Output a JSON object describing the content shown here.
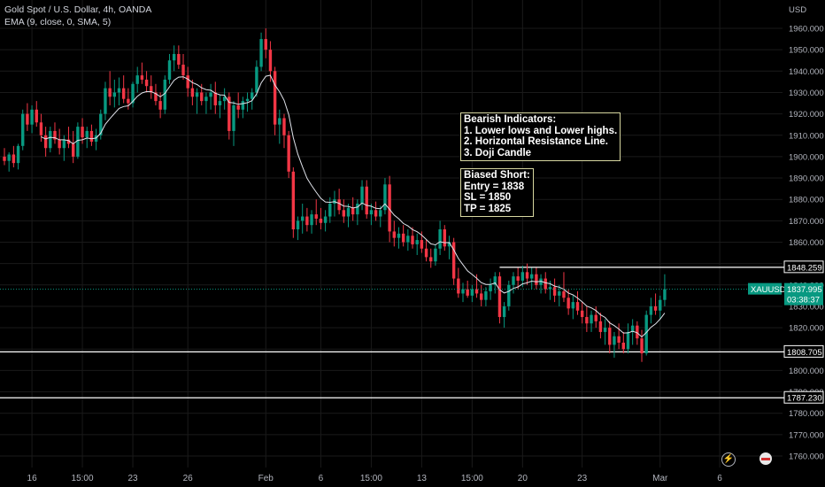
{
  "header": {
    "title": "Gold Spot / U.S. Dollar, 4h, OANDA",
    "indicator": "EMA (9, close, 0, SMA, 5)"
  },
  "colors": {
    "background": "#000000",
    "bull": "#089981",
    "bear": "#f23645",
    "ema": "#e0e3eb",
    "axis_text": "#b2b5be",
    "grid": "#1a1a1a",
    "price_tag": "#089981"
  },
  "annotations": {
    "bearish": {
      "title": "Bearish Indicators:",
      "lines": [
        "1. Lower lows and Lower highs.",
        "2. Horizontal Resistance Line.",
        "3. Doji Candle"
      ]
    },
    "trade": {
      "title": "Biased Short:",
      "lines": [
        "Entry = 1838",
        "SL = 1850",
        "TP = 1825"
      ]
    }
  },
  "chart_data": {
    "type": "candlestick",
    "symbol": "XAUUSD",
    "currency": "USD",
    "ylim": [
      1754,
      1967
    ],
    "y_ticks": [
      1760,
      1770,
      1780,
      1790,
      1800,
      1810,
      1820,
      1830,
      1840,
      1850,
      1860,
      1870,
      1880,
      1890,
      1900,
      1910,
      1920,
      1930,
      1940,
      1950,
      1960
    ],
    "y_tick_labels": [
      "1760.000",
      "1770.000",
      "1780.000",
      "1790.000",
      "1800.000",
      "1810.000",
      "1820.000",
      "1830.000",
      "1840.000",
      "1850.000",
      "1860.000",
      "1870.000",
      "1880.000",
      "1890.000",
      "1900.000",
      "1910.000",
      "1920.000",
      "1930.000",
      "1940.000",
      "1950.000",
      "1960.000"
    ],
    "x_ticks": [
      {
        "label": "16",
        "bar": 6
      },
      {
        "label": "15:00",
        "bar": 17
      },
      {
        "label": "23",
        "bar": 28
      },
      {
        "label": "26",
        "bar": 40
      },
      {
        "label": "Feb",
        "bar": 57
      },
      {
        "label": "6",
        "bar": 69
      },
      {
        "label": "15:00",
        "bar": 80
      },
      {
        "label": "13",
        "bar": 91
      },
      {
        "label": "15:00",
        "bar": 102
      },
      {
        "label": "20",
        "bar": 113
      },
      {
        "label": "23",
        "bar": 126
      },
      {
        "label": "Mar",
        "bar": 143
      },
      {
        "label": "6",
        "bar": 156
      }
    ],
    "bar_count": 165,
    "horizontal_lines": [
      {
        "price": 1848.259,
        "label": "1848.259",
        "start_bar": 108
      },
      {
        "price": 1808.705,
        "label": "1808.705",
        "start_bar": 0
      },
      {
        "price": 1787.23,
        "label": "1787.230",
        "start_bar": 0
      }
    ],
    "last_price": {
      "value": 1837.995,
      "label": "1837.995",
      "countdown": "03:38:37",
      "symbol_label": "XAUUSD"
    },
    "ema_period": 9,
    "candles": [
      [
        1900,
        1904,
        1896,
        1898
      ],
      [
        1898,
        1902,
        1893,
        1901
      ],
      [
        1901,
        1905,
        1895,
        1897
      ],
      [
        1897,
        1906,
        1894,
        1905
      ],
      [
        1905,
        1922,
        1903,
        1920
      ],
      [
        1920,
        1925,
        1912,
        1915
      ],
      [
        1915,
        1924,
        1911,
        1922
      ],
      [
        1922,
        1926,
        1914,
        1916
      ],
      [
        1916,
        1920,
        1907,
        1910
      ],
      [
        1910,
        1914,
        1900,
        1904
      ],
      [
        1904,
        1914,
        1902,
        1912
      ],
      [
        1912,
        1916,
        1906,
        1908
      ],
      [
        1908,
        1913,
        1901,
        1904
      ],
      [
        1904,
        1910,
        1898,
        1908
      ],
      [
        1908,
        1914,
        1904,
        1906
      ],
      [
        1906,
        1912,
        1897,
        1900
      ],
      [
        1900,
        1916,
        1899,
        1914
      ],
      [
        1914,
        1918,
        1906,
        1909
      ],
      [
        1909,
        1914,
        1904,
        1912
      ],
      [
        1912,
        1915,
        1905,
        1907
      ],
      [
        1907,
        1913,
        1903,
        1910
      ],
      [
        1910,
        1922,
        1908,
        1920
      ],
      [
        1920,
        1935,
        1917,
        1932
      ],
      [
        1932,
        1940,
        1924,
        1928
      ],
      [
        1928,
        1936,
        1923,
        1930
      ],
      [
        1930,
        1937,
        1924,
        1932
      ],
      [
        1932,
        1938,
        1925,
        1927
      ],
      [
        1927,
        1932,
        1922,
        1925
      ],
      [
        1925,
        1935,
        1923,
        1934
      ],
      [
        1934,
        1942,
        1930,
        1938
      ],
      [
        1938,
        1944,
        1934,
        1936
      ],
      [
        1936,
        1940,
        1930,
        1933
      ],
      [
        1933,
        1938,
        1927,
        1930
      ],
      [
        1930,
        1934,
        1924,
        1926
      ],
      [
        1926,
        1930,
        1918,
        1922
      ],
      [
        1922,
        1938,
        1920,
        1936
      ],
      [
        1936,
        1948,
        1934,
        1945
      ],
      [
        1945,
        1952,
        1940,
        1948
      ],
      [
        1948,
        1952,
        1941,
        1943
      ],
      [
        1943,
        1948,
        1936,
        1938
      ],
      [
        1938,
        1942,
        1928,
        1932
      ],
      [
        1932,
        1936,
        1924,
        1928
      ],
      [
        1928,
        1932,
        1920,
        1930
      ],
      [
        1930,
        1934,
        1924,
        1926
      ],
      [
        1926,
        1930,
        1920,
        1928
      ],
      [
        1928,
        1934,
        1922,
        1930
      ],
      [
        1930,
        1935,
        1920,
        1924
      ],
      [
        1924,
        1929,
        1918,
        1926
      ],
      [
        1926,
        1932,
        1922,
        1928
      ],
      [
        1928,
        1930,
        1908,
        1912
      ],
      [
        1912,
        1926,
        1905,
        1924
      ],
      [
        1924,
        1930,
        1918,
        1922
      ],
      [
        1922,
        1928,
        1918,
        1926
      ],
      [
        1926,
        1930,
        1921,
        1927
      ],
      [
        1927,
        1932,
        1922,
        1930
      ],
      [
        1930,
        1945,
        1928,
        1942
      ],
      [
        1942,
        1958,
        1940,
        1955
      ],
      [
        1955,
        1960,
        1946,
        1950
      ],
      [
        1950,
        1954,
        1935,
        1940
      ],
      [
        1940,
        1942,
        1910,
        1915
      ],
      [
        1915,
        1922,
        1906,
        1918
      ],
      [
        1918,
        1920,
        1904,
        1910
      ],
      [
        1910,
        1912,
        1890,
        1893
      ],
      [
        1893,
        1895,
        1862,
        1866
      ],
      [
        1866,
        1872,
        1861,
        1870
      ],
      [
        1870,
        1878,
        1864,
        1872
      ],
      [
        1872,
        1876,
        1865,
        1868
      ],
      [
        1868,
        1875,
        1864,
        1873
      ],
      [
        1873,
        1880,
        1868,
        1871
      ],
      [
        1871,
        1876,
        1866,
        1869
      ],
      [
        1869,
        1875,
        1865,
        1872
      ],
      [
        1872,
        1881,
        1869,
        1878
      ],
      [
        1878,
        1884,
        1872,
        1880
      ],
      [
        1880,
        1885,
        1873,
        1875
      ],
      [
        1875,
        1880,
        1869,
        1872
      ],
      [
        1872,
        1878,
        1867,
        1876
      ],
      [
        1876,
        1881,
        1870,
        1873
      ],
      [
        1873,
        1880,
        1868,
        1878
      ],
      [
        1878,
        1889,
        1875,
        1886
      ],
      [
        1886,
        1889,
        1871,
        1873
      ],
      [
        1873,
        1878,
        1868,
        1875
      ],
      [
        1875,
        1879,
        1870,
        1872
      ],
      [
        1872,
        1877,
        1867,
        1875
      ],
      [
        1875,
        1890,
        1873,
        1887
      ],
      [
        1887,
        1891,
        1860,
        1865
      ],
      [
        1865,
        1870,
        1858,
        1862
      ],
      [
        1862,
        1867,
        1857,
        1864
      ],
      [
        1864,
        1868,
        1858,
        1860
      ],
      [
        1860,
        1866,
        1856,
        1863
      ],
      [
        1863,
        1867,
        1857,
        1859
      ],
      [
        1859,
        1864,
        1854,
        1861
      ],
      [
        1861,
        1865,
        1855,
        1857
      ],
      [
        1857,
        1861,
        1851,
        1853
      ],
      [
        1853,
        1857,
        1848,
        1851
      ],
      [
        1851,
        1859,
        1849,
        1857
      ],
      [
        1857,
        1870,
        1854,
        1866
      ],
      [
        1866,
        1868,
        1856,
        1858
      ],
      [
        1858,
        1863,
        1852,
        1860
      ],
      [
        1860,
        1862,
        1840,
        1843
      ],
      [
        1843,
        1848,
        1834,
        1836
      ],
      [
        1836,
        1841,
        1832,
        1838
      ],
      [
        1838,
        1842,
        1834,
        1835
      ],
      [
        1835,
        1840,
        1832,
        1838
      ],
      [
        1838,
        1845,
        1834,
        1836
      ],
      [
        1836,
        1840,
        1830,
        1833
      ],
      [
        1833,
        1839,
        1830,
        1837
      ],
      [
        1837,
        1843,
        1833,
        1840
      ],
      [
        1840,
        1846,
        1836,
        1844
      ],
      [
        1844,
        1846,
        1822,
        1825
      ],
      [
        1825,
        1832,
        1820,
        1830
      ],
      [
        1830,
        1842,
        1828,
        1840
      ],
      [
        1840,
        1846,
        1836,
        1844
      ],
      [
        1844,
        1848,
        1838,
        1842
      ],
      [
        1842,
        1849,
        1839,
        1846
      ],
      [
        1846,
        1850,
        1840,
        1843
      ],
      [
        1843,
        1848,
        1838,
        1845
      ],
      [
        1845,
        1848,
        1838,
        1840
      ],
      [
        1840,
        1845,
        1836,
        1843
      ],
      [
        1843,
        1846,
        1836,
        1838
      ],
      [
        1838,
        1842,
        1833,
        1839
      ],
      [
        1839,
        1843,
        1832,
        1835
      ],
      [
        1835,
        1840,
        1830,
        1837
      ],
      [
        1837,
        1846,
        1832,
        1834
      ],
      [
        1834,
        1838,
        1826,
        1829
      ],
      [
        1829,
        1835,
        1824,
        1832
      ],
      [
        1832,
        1837,
        1826,
        1828
      ],
      [
        1828,
        1832,
        1822,
        1825
      ],
      [
        1825,
        1830,
        1818,
        1822
      ],
      [
        1822,
        1828,
        1818,
        1826
      ],
      [
        1826,
        1830,
        1820,
        1823
      ],
      [
        1823,
        1827,
        1815,
        1818
      ],
      [
        1818,
        1824,
        1812,
        1820
      ],
      [
        1820,
        1823,
        1808,
        1812
      ],
      [
        1812,
        1818,
        1806,
        1816
      ],
      [
        1816,
        1822,
        1810,
        1813
      ],
      [
        1813,
        1818,
        1808,
        1810
      ],
      [
        1810,
        1822,
        1808,
        1818
      ],
      [
        1818,
        1824,
        1812,
        1821
      ],
      [
        1821,
        1823,
        1812,
        1815
      ],
      [
        1815,
        1819,
        1804,
        1808
      ],
      [
        1808,
        1828,
        1807,
        1826
      ],
      [
        1826,
        1834,
        1822,
        1830
      ],
      [
        1830,
        1836,
        1826,
        1828
      ],
      [
        1828,
        1835,
        1824,
        1833
      ],
      [
        1833,
        1845,
        1830,
        1838
      ]
    ]
  }
}
